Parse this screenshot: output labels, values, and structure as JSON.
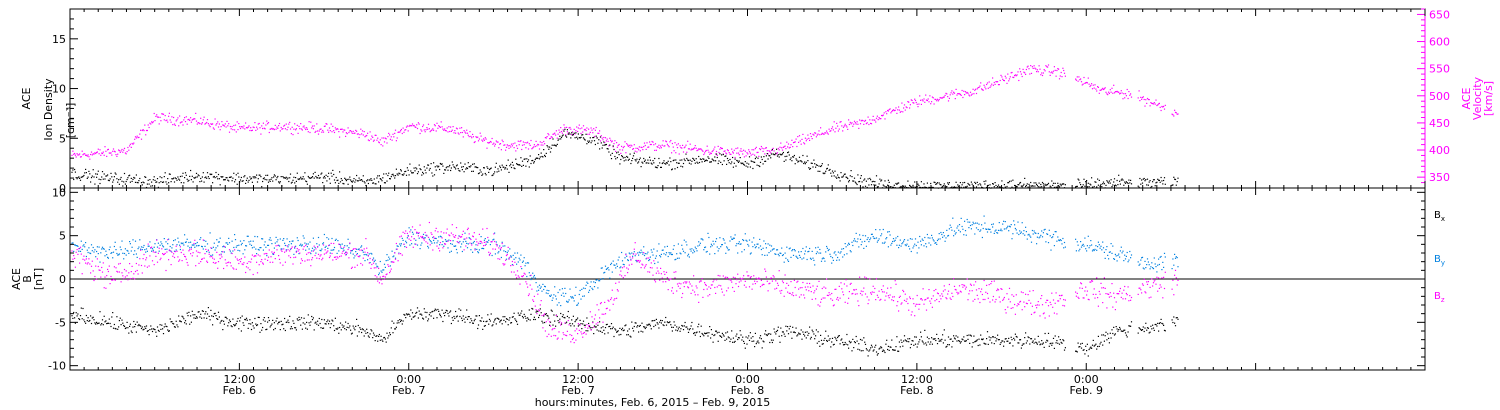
{
  "chart_data": [
    {
      "type": "scatter",
      "panel": "top",
      "ylabel_left": [
        "ACE",
        "Ion Density",
        "[cm⁻³]"
      ],
      "ylabel_right": [
        "ACE",
        "Velocity",
        "[km/s]"
      ],
      "ylim_left": [
        0,
        18
      ],
      "yticks_left": [
        0,
        5,
        10,
        15
      ],
      "ylim_right": [
        330,
        660
      ],
      "yticks_right": [
        350,
        400,
        450,
        500,
        550,
        600,
        650
      ],
      "x_data_end_hours": 78.5,
      "series": [
        {
          "axis": "left",
          "color": "#000000",
          "profile": [
            [
              0,
              1.5
            ],
            [
              3,
              1.0
            ],
            [
              6,
              0.7
            ],
            [
              9,
              1.3
            ],
            [
              12,
              1.0
            ],
            [
              15,
              0.9
            ],
            [
              18,
              1.2
            ],
            [
              21,
              0.6
            ],
            [
              24,
              1.8
            ],
            [
              27,
              2.2
            ],
            [
              30,
              1.8
            ],
            [
              33,
              3.0
            ],
            [
              35,
              5.5
            ],
            [
              37,
              5.0
            ],
            [
              39,
              3.0
            ],
            [
              42,
              2.5
            ],
            [
              45,
              3.0
            ],
            [
              48,
              2.5
            ],
            [
              50,
              3.5
            ],
            [
              53,
              2.2
            ],
            [
              56,
              0.8
            ],
            [
              58,
              0.3
            ],
            [
              62,
              0.2
            ],
            [
              66,
              0.3
            ],
            [
              70,
              0.3
            ],
            [
              72,
              0.3
            ],
            [
              73,
              0.5
            ],
            [
              75,
              0.6
            ],
            [
              78.5,
              0.6
            ]
          ]
        },
        {
          "axis": "right",
          "color": "#ff00ff",
          "profile": [
            [
              0,
              390
            ],
            [
              2,
              395
            ],
            [
              4,
              400
            ],
            [
              6,
              460
            ],
            [
              9,
              455
            ],
            [
              12,
              440
            ],
            [
              15,
              445
            ],
            [
              18,
              440
            ],
            [
              21,
              430
            ],
            [
              22,
              415
            ],
            [
              24,
              445
            ],
            [
              27,
              440
            ],
            [
              29,
              420
            ],
            [
              31,
              410
            ],
            [
              33,
              410
            ],
            [
              35,
              440
            ],
            [
              37,
              435
            ],
            [
              39,
              405
            ],
            [
              42,
              410
            ],
            [
              45,
              400
            ],
            [
              48,
              395
            ],
            [
              50,
              400
            ],
            [
              52,
              420
            ],
            [
              54,
              440
            ],
            [
              56,
              450
            ],
            [
              58,
              470
            ],
            [
              60,
              490
            ],
            [
              62,
              500
            ],
            [
              64,
              510
            ],
            [
              66,
              530
            ],
            [
              68,
              550
            ],
            [
              70,
              545
            ],
            [
              72,
              525
            ],
            [
              73,
              510
            ],
            [
              75,
              505
            ],
            [
              77,
              485
            ],
            [
              78.5,
              470
            ]
          ]
        }
      ]
    },
    {
      "type": "scatter",
      "panel": "bottom",
      "ylabel_left": [
        "ACE",
        "B",
        "[nT]"
      ],
      "ylim": [
        -10.5,
        10.5
      ],
      "yticks": [
        -10,
        -5,
        0,
        5,
        10
      ],
      "zero_line": true,
      "x_data_end_hours": 78.5,
      "series": [
        {
          "name": "B",
          "subscript": "x",
          "color": "#000000",
          "profile": [
            [
              0,
              -4
            ],
            [
              3,
              -5
            ],
            [
              6,
              -6
            ],
            [
              9,
              -4
            ],
            [
              12,
              -5
            ],
            [
              15,
              -5
            ],
            [
              18,
              -5
            ],
            [
              21,
              -6
            ],
            [
              22,
              -7
            ],
            [
              24,
              -4
            ],
            [
              27,
              -4
            ],
            [
              30,
              -5
            ],
            [
              33,
              -4
            ],
            [
              36,
              -5
            ],
            [
              39,
              -6
            ],
            [
              42,
              -5
            ],
            [
              45,
              -6
            ],
            [
              48,
              -7
            ],
            [
              51,
              -6
            ],
            [
              54,
              -7
            ],
            [
              57,
              -8
            ],
            [
              60,
              -7
            ],
            [
              63,
              -7
            ],
            [
              66,
              -7
            ],
            [
              69,
              -7
            ],
            [
              72,
              -8
            ],
            [
              74,
              -6
            ],
            [
              78.5,
              -5
            ]
          ]
        },
        {
          "name": "B",
          "subscript": "y",
          "color": "#0080e0",
          "profile": [
            [
              0,
              4
            ],
            [
              3,
              3
            ],
            [
              6,
              4
            ],
            [
              9,
              4
            ],
            [
              12,
              4
            ],
            [
              15,
              4
            ],
            [
              18,
              4
            ],
            [
              21,
              3
            ],
            [
              22,
              1
            ],
            [
              24,
              5
            ],
            [
              27,
              4
            ],
            [
              30,
              4
            ],
            [
              32,
              2
            ],
            [
              34,
              -2
            ],
            [
              36,
              -2
            ],
            [
              38,
              1
            ],
            [
              40,
              3
            ],
            [
              42,
              3
            ],
            [
              45,
              4
            ],
            [
              48,
              4
            ],
            [
              51,
              3
            ],
            [
              54,
              3
            ],
            [
              57,
              5
            ],
            [
              60,
              4
            ],
            [
              63,
              6
            ],
            [
              66,
              6
            ],
            [
              69,
              5
            ],
            [
              72,
              4
            ],
            [
              74,
              3
            ],
            [
              76,
              2
            ],
            [
              78.5,
              2
            ]
          ]
        },
        {
          "name": "B",
          "subscript": "z",
          "color": "#ff00ff",
          "profile": [
            [
              0,
              3
            ],
            [
              3,
              0
            ],
            [
              6,
              3
            ],
            [
              9,
              3
            ],
            [
              12,
              2
            ],
            [
              15,
              3
            ],
            [
              18,
              3
            ],
            [
              21,
              3
            ],
            [
              22,
              0
            ],
            [
              24,
              5
            ],
            [
              27,
              5
            ],
            [
              30,
              4
            ],
            [
              32,
              1
            ],
            [
              34,
              -6
            ],
            [
              36,
              -6
            ],
            [
              38,
              -3
            ],
            [
              40,
              3
            ],
            [
              42,
              0
            ],
            [
              45,
              -1
            ],
            [
              48,
              0
            ],
            [
              51,
              -1
            ],
            [
              54,
              -2
            ],
            [
              57,
              -1
            ],
            [
              60,
              -3
            ],
            [
              63,
              -1
            ],
            [
              66,
              -2
            ],
            [
              69,
              -3
            ],
            [
              72,
              -1
            ],
            [
              74,
              -2
            ],
            [
              76,
              -1
            ],
            [
              78.5,
              0
            ]
          ]
        }
      ]
    }
  ],
  "x_axis": {
    "range_hours": [
      0,
      96
    ],
    "ticks": [
      {
        "h": 12,
        "time": "12:00",
        "date": "Feb. 6"
      },
      {
        "h": 24,
        "time": "0:00",
        "date": "Feb. 7"
      },
      {
        "h": 36,
        "time": "12:00",
        "date": "Feb. 7"
      },
      {
        "h": 48,
        "time": "0:00",
        "date": "Feb. 8"
      },
      {
        "h": 60,
        "time": "12:00",
        "date": "Feb. 8"
      },
      {
        "h": 72,
        "time": "0:00",
        "date": "Feb. 9"
      }
    ],
    "minor_step_hours": 1,
    "caption": "hours:minutes, Feb.  6, 2015 – Feb.  9, 2015"
  }
}
